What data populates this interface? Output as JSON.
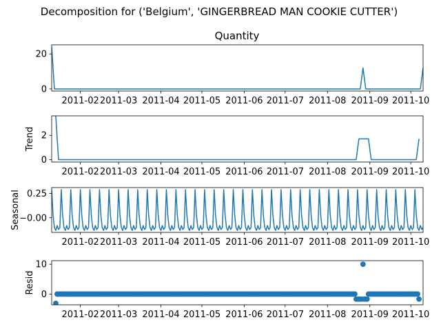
{
  "figure": {
    "title": "Decomposition for ('Belgium', 'GINGERBREAD MAN COOKIE CUTTER')"
  },
  "chart_data": [
    {
      "id": "observed",
      "type": "line",
      "title": "Quantity",
      "ylabel": "",
      "ylim": [
        -1.2,
        25.2
      ],
      "yticks": [
        0,
        20
      ],
      "xlim": [
        "2011-01-11",
        "2011-10-10"
      ],
      "xticks": [
        "2011-02",
        "2011-03",
        "2011-04",
        "2011-05",
        "2011-06",
        "2011-07",
        "2011-08",
        "2011-09",
        "2011-10"
      ],
      "color": "#1f77b4",
      "series": [
        {
          "points": [
            [
              "2011-01-11",
              24
            ],
            [
              "2011-01-13",
              0
            ],
            [
              "2011-08-25",
              0
            ],
            [
              "2011-08-27",
              12
            ],
            [
              "2011-08-29",
              0
            ],
            [
              "2011-10-08",
              0
            ],
            [
              "2011-10-10",
              12
            ]
          ]
        }
      ]
    },
    {
      "id": "trend",
      "type": "line",
      "title": "",
      "ylabel": "Trend",
      "ylim": [
        -0.2,
        3.6
      ],
      "yticks": [
        0,
        2
      ],
      "xlim": [
        "2011-01-11",
        "2011-10-10"
      ],
      "xticks": [
        "2011-02",
        "2011-03",
        "2011-04",
        "2011-05",
        "2011-06",
        "2011-07",
        "2011-08",
        "2011-09",
        "2011-10"
      ],
      "color": "#1f77b4",
      "series": [
        {
          "points": [
            [
              "2011-01-14",
              3.6
            ],
            [
              "2011-01-16",
              0
            ],
            [
              "2011-08-22",
              0
            ],
            [
              "2011-08-24",
              1.71
            ],
            [
              "2011-08-31",
              1.71
            ],
            [
              "2011-09-02",
              0
            ],
            [
              "2011-10-05",
              0
            ],
            [
              "2011-10-07",
              1.71
            ]
          ]
        }
      ]
    },
    {
      "id": "seasonal",
      "type": "line",
      "title": "",
      "ylabel": "Seasonal",
      "ylim": [
        -0.15,
        0.31
      ],
      "yticks": [
        0.25,
        -0.0
      ],
      "ytick_labels": [
        "0.25",
        "−0.00"
      ],
      "xlim": [
        "2011-01-11",
        "2011-10-10"
      ],
      "xticks": [
        "2011-02",
        "2011-03",
        "2011-04",
        "2011-05",
        "2011-06",
        "2011-07",
        "2011-08",
        "2011-09",
        "2011-10"
      ],
      "color": "#1f77b4",
      "period_days": 7,
      "pattern": [
        0.29,
        0.03,
        -0.1,
        -0.13,
        -0.08,
        -0.12,
        -0.1
      ],
      "series": [
        {
          "start": "2011-01-11",
          "end": "2011-10-10"
        }
      ]
    },
    {
      "id": "resid",
      "type": "scatter",
      "title": "",
      "ylabel": "Resid",
      "ylim": [
        -3.6,
        11.2
      ],
      "yticks": [
        0,
        10
      ],
      "xlim": [
        "2011-01-11",
        "2011-10-10"
      ],
      "xticks": [
        "2011-02",
        "2011-03",
        "2011-04",
        "2011-05",
        "2011-06",
        "2011-07",
        "2011-08",
        "2011-09",
        "2011-10"
      ],
      "color": "#1f77b4",
      "series": [
        {
          "start": "2011-01-14",
          "end": "2011-10-07",
          "baseline": 0,
          "outliers": [
            [
              "2011-01-14",
              -3.1
            ],
            [
              "2011-08-22",
              -1.7
            ],
            [
              "2011-08-23",
              -1.7
            ],
            [
              "2011-08-24",
              -1.7
            ],
            [
              "2011-08-25",
              -1.7
            ],
            [
              "2011-08-26",
              -1.7
            ],
            [
              "2011-08-27",
              10.0
            ],
            [
              "2011-08-28",
              -1.7
            ],
            [
              "2011-08-29",
              -1.7
            ],
            [
              "2011-08-30",
              -1.7
            ],
            [
              "2011-10-07",
              -1.7
            ]
          ]
        }
      ]
    }
  ]
}
